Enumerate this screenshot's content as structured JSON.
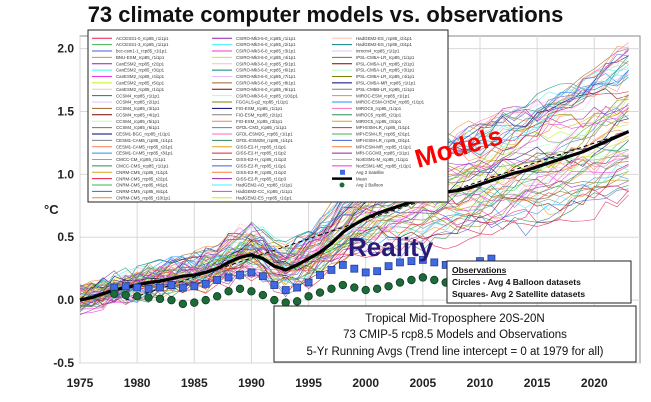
{
  "chart_data": {
    "type": "line",
    "title": "73 climate computer models vs. observations",
    "ylabel": "°C",
    "xlim": [
      1975,
      2024
    ],
    "ylim": [
      -0.5,
      2.1
    ],
    "x_ticks": [
      "1975",
      "1980",
      "1985",
      "1990",
      "1995",
      "2000",
      "2005",
      "2010",
      "2015",
      "2020"
    ],
    "y_ticks": [
      "2.0",
      "1.5",
      "1.0",
      "0.5",
      "0.0",
      "-0.5"
    ],
    "grid": true,
    "legend_location": "top-left",
    "annotations": {
      "models_label": "Models",
      "reality_label": "Reality",
      "observations_box": {
        "heading": "Observations",
        "line1": "Circles - Avg 4 Balloon datasets",
        "line2": "Squares- Avg 2 Satellite datasets"
      },
      "info_box": {
        "line1": "Tropical Mid-Troposphere 20S-20N",
        "line2": "73 CMIP-5 rcp8.5 Models and Observations",
        "line3": "5-Yr Running Avgs (Trend line intercept = 0 at 1979 for all)"
      }
    },
    "legend_entries": [
      "ACCESS1-0_rcp85_r1i1p1",
      "ACCESS1-3_rcp85_r1i1p1",
      "bcc-csm1-1_rcp85_r1i1p1",
      "BNU-ESM_rcp85_r1i1p1",
      "CanESM2_rcp85_r2i1p1",
      "CanESM2_rcp85_r3i1p1",
      "CanESM2_rcp85_r4i1p1",
      "CanESM2_rcp85_r5i1p1",
      "CanESM2_rcp85_r1i1p1",
      "CCSM4_rcp85_r1i1p1",
      "CCSM4_rcp85_r2i1p1",
      "CCSM4_rcp85_r3i1p1",
      "CCSM4_rcp85_r4i1p1",
      "CCSM4_rcp85_r5i1p1",
      "CCSM4_rcp85_r6i1p1",
      "CESM1-BGC_rcp85_r1i1p1",
      "CESM1-CAM5_rcp85_r1i1p1",
      "CESM1-CAM5_rcp85_r2i1p1",
      "CESM1-CAM5_rcp85_r3i1p1",
      "CMCC-CM_rcp85_r1i1p1",
      "CMCC-CMS_rcp85_r1i1p1",
      "CNRM-CM5_rcp85_r1i1p1",
      "CNRM-CM5_rcp85_r2i1p1",
      "CNRM-CM5_rcp85_r4i1p1",
      "CNRM-CM5_rcp85_r6i1p1",
      "CNRM-CM5_rcp85_r10i1p1",
      "CSIRO-Mk3-6-0_rcp85_r1i1p1",
      "CSIRO-Mk3-6-0_rcp85_r2i1p1",
      "CSIRO-Mk3-6-0_rcp85_r3i1p1",
      "CSIRO-Mk3-6-0_rcp85_r4i1p1",
      "CSIRO-Mk3-6-0_rcp85_r5i1p1",
      "CSIRO-Mk3-6-0_rcp85_r6i1p1",
      "CSIRO-Mk3-6-0_rcp85_r7i1p1",
      "CSIRO-Mk3-6-0_rcp85_r8i1p1",
      "CSIRO-Mk3-6-0_rcp85_r9i1p1",
      "CSIRO-Mk3-6-0_rcp85_r10i1p1",
      "FGOALS-g2_rcp85_r1i1p1",
      "FIO-ESM_rcp85_r1i1p1",
      "FIO-ESM_rcp85_r2i1p1",
      "FIO-ESM_rcp85_r3i1p1",
      "GFDL-CM3_rcp85_r1i1p1",
      "GFDL-ESM2G_rcp85_r1i1p1",
      "GFDL-ESM2M_rcp85_r1i1p1",
      "GISS-E2-H_rcp85_r1i1p1",
      "GISS-E2-H_rcp85_r1i1p2",
      "GISS-E2-H_rcp85_r1i1p3",
      "GISS-E2-R_rcp85_r1i1p1",
      "GISS-E2-R_rcp85_r1i1p2",
      "GISS-E2-R_rcp85_r1i1p3",
      "HadGEM2-AO_rcp85_r1i1p1",
      "HadGEM2-CC_rcp85_r1i1p1",
      "HadGEM2-ES_rcp85_r1i1p1",
      "HadGEM2-ES_rcp85_r2i1p1",
      "HadGEM2-ES_rcp85_r3i1p1",
      "inmcm4_rcp85_r1i1p1",
      "IPSL-CM5A-LR_rcp85_r1i1p1",
      "IPSL-CM5A-LR_rcp85_r2i1p1",
      "IPSL-CM5A-LR_rcp85_r3i1p1",
      "IPSL-CM5A-LR_rcp85_r4i1p1",
      "IPSL-CM5A-MR_rcp85_r1i1p1",
      "IPSL-CM5B-LR_rcp85_r1i1p1",
      "MIROC-ESM_rcp85_r1i1p1",
      "MIROC-ESM-CHEM_rcp85_r1i1p1",
      "MIROC5_rcp85_r1i1p1",
      "MIROC5_rcp85_r2i1p1",
      "MIROC5_rcp85_r3i1p1",
      "MPI-ESM-LR_rcp85_r1i1p1",
      "MPI-ESM-LR_rcp85_r2i1p1",
      "MPI-ESM-LR_rcp85_r3i1p1",
      "MPI-ESM-MR_rcp85_r1i1p1",
      "MRI-CGCM3_rcp85_r1i1p1",
      "NorESM1-M_rcp85_r1i1p1",
      "NorESM1-ME_rcp85_r1i1p1",
      "Avg 2 Satellite",
      "Mean",
      "Avg 2 Balloon"
    ],
    "series": [
      {
        "name": "Mean",
        "x": [
          1975,
          1976,
          1977,
          1978,
          1979,
          1980,
          1981,
          1982,
          1983,
          1984,
          1985,
          1986,
          1987,
          1988,
          1989,
          1990,
          1991,
          1992,
          1993,
          1994,
          1995,
          1996,
          1997,
          1998,
          1999,
          2000,
          2001,
          2002,
          2003,
          2004,
          2005,
          2006,
          2007,
          2008,
          2009,
          2010,
          2011,
          2012,
          2013,
          2014,
          2015,
          2016,
          2017,
          2018,
          2019,
          2020,
          2021,
          2022,
          2023
        ],
        "values": [
          0.0,
          0.02,
          0.05,
          0.08,
          0.1,
          0.12,
          0.14,
          0.15,
          0.17,
          0.19,
          0.2,
          0.22,
          0.25,
          0.3,
          0.34,
          0.36,
          0.33,
          0.27,
          0.24,
          0.28,
          0.33,
          0.38,
          0.45,
          0.54,
          0.6,
          0.65,
          0.69,
          0.72,
          0.75,
          0.78,
          0.82,
          0.84,
          0.86,
          0.87,
          0.89,
          0.92,
          0.95,
          0.98,
          1.01,
          1.03,
          1.06,
          1.09,
          1.12,
          1.15,
          1.18,
          1.22,
          1.26,
          1.3,
          1.34
        ]
      },
      {
        "name": "Avg 2 Balloon",
        "x": [
          1978,
          1979,
          1980,
          1981,
          1982,
          1983,
          1984,
          1985,
          1986,
          1987,
          1988,
          1989,
          1990,
          1991,
          1992,
          1993,
          1994,
          1995,
          1996,
          1997,
          1998,
          1999,
          2000,
          2001,
          2002,
          2003,
          2004,
          2005,
          2006,
          2007,
          2008,
          2009,
          2010,
          2011
        ],
        "values": [
          0.05,
          0.04,
          0.03,
          0.02,
          0.01,
          0.0,
          -0.03,
          -0.02,
          0.0,
          0.03,
          0.07,
          0.09,
          0.07,
          0.04,
          0.0,
          -0.02,
          -0.01,
          0.03,
          0.06,
          0.09,
          0.12,
          0.1,
          0.08,
          0.09,
          0.11,
          0.14,
          0.16,
          0.18,
          0.16,
          0.14,
          0.13,
          0.14,
          0.17,
          0.2
        ]
      },
      {
        "name": "Avg 2 Satellite",
        "x": [
          1978,
          1979,
          1980,
          1981,
          1982,
          1983,
          1984,
          1985,
          1986,
          1987,
          1988,
          1989,
          1990,
          1991,
          1992,
          1993,
          1994,
          1995,
          1996,
          1997,
          1998,
          1999,
          2000,
          2001,
          2002,
          2003,
          2004,
          2005,
          2006,
          2007,
          2008,
          2009,
          2010,
          2011
        ],
        "values": [
          0.1,
          0.11,
          0.1,
          0.09,
          0.1,
          0.12,
          0.1,
          0.11,
          0.13,
          0.16,
          0.18,
          0.2,
          0.22,
          0.19,
          0.12,
          0.08,
          0.1,
          0.14,
          0.2,
          0.24,
          0.28,
          0.25,
          0.22,
          0.23,
          0.27,
          0.3,
          0.31,
          0.32,
          0.3,
          0.28,
          0.27,
          0.28,
          0.31,
          0.33
        ]
      }
    ]
  }
}
